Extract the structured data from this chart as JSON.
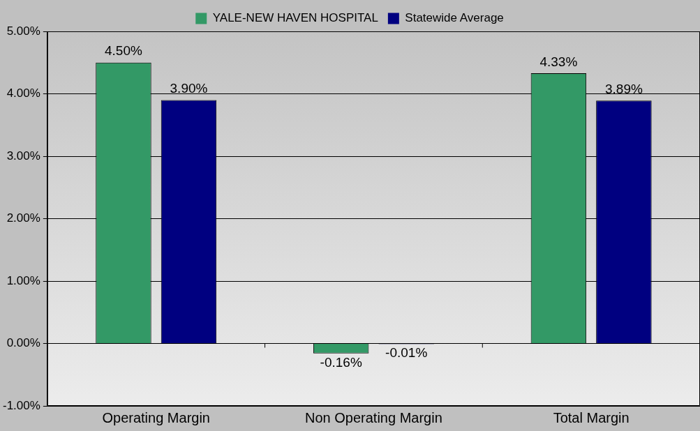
{
  "chart_data": {
    "type": "bar",
    "categories": [
      "Operating Margin",
      "Non Operating Margin",
      "Total Margin"
    ],
    "series": [
      {
        "name": "YALE-NEW HAVEN HOSPITAL",
        "color": "#339966",
        "values": [
          4.5,
          -0.16,
          4.33
        ],
        "value_labels": [
          "4.50%",
          "-0.16%",
          "4.33%"
        ]
      },
      {
        "name": "Statewide Average",
        "color": "#000080",
        "values": [
          3.9,
          -0.01,
          3.89
        ],
        "value_labels": [
          "3.90%",
          "-0.01%",
          "3.89%"
        ]
      }
    ],
    "ylim": [
      -1,
      5
    ],
    "yticks": [
      {
        "value": -1,
        "label": "-1.00%"
      },
      {
        "value": 0,
        "label": "0.00%"
      },
      {
        "value": 1,
        "label": "1.00%"
      },
      {
        "value": 2,
        "label": "2.00%"
      },
      {
        "value": 3,
        "label": "3.00%"
      },
      {
        "value": 4,
        "label": "4.00%"
      },
      {
        "value": 5,
        "label": "5.00%"
      }
    ],
    "grid": "y",
    "legend": "top"
  }
}
